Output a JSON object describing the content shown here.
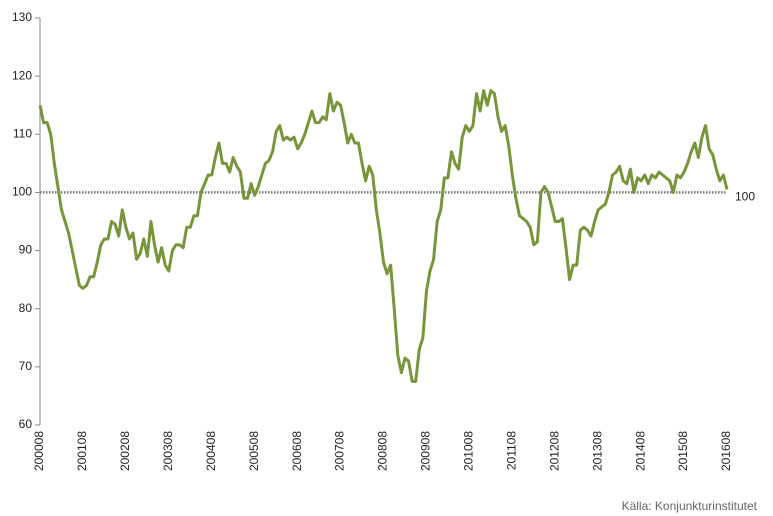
{
  "chart_data": {
    "type": "line",
    "source": "Källa: Konjunkturinstitutet",
    "categories": [
      "200008",
      null,
      null,
      null,
      null,
      null,
      null,
      null,
      null,
      null,
      null,
      null,
      "200108",
      null,
      null,
      null,
      null,
      null,
      null,
      null,
      null,
      null,
      null,
      null,
      "200208",
      null,
      null,
      null,
      null,
      null,
      null,
      null,
      null,
      null,
      null,
      null,
      "200308",
      null,
      null,
      null,
      null,
      null,
      null,
      null,
      null,
      null,
      null,
      null,
      "200408",
      null,
      null,
      null,
      null,
      null,
      null,
      null,
      null,
      null,
      null,
      null,
      "200508",
      null,
      null,
      null,
      null,
      null,
      null,
      null,
      null,
      null,
      null,
      null,
      "200608",
      null,
      null,
      null,
      null,
      null,
      null,
      null,
      null,
      null,
      null,
      null,
      "200708",
      null,
      null,
      null,
      null,
      null,
      null,
      null,
      null,
      null,
      null,
      null,
      "200808",
      null,
      null,
      null,
      null,
      null,
      null,
      null,
      null,
      null,
      null,
      null,
      "200908",
      null,
      null,
      null,
      null,
      null,
      null,
      null,
      null,
      null,
      null,
      null,
      "201008",
      null,
      null,
      null,
      null,
      null,
      null,
      null,
      null,
      null,
      null,
      null,
      "201108",
      null,
      null,
      null,
      null,
      null,
      null,
      null,
      null,
      null,
      null,
      null,
      "201208",
      null,
      null,
      null,
      null,
      null,
      null,
      null,
      null,
      null,
      null,
      null,
      "201308",
      null,
      null,
      null,
      null,
      null,
      null,
      null,
      null,
      null,
      null,
      null,
      "201408",
      null,
      null,
      null,
      null,
      null,
      null,
      null,
      null,
      null,
      null,
      null,
      "201508",
      null,
      null,
      null,
      null,
      null,
      null,
      null,
      null,
      null,
      null,
      null,
      "201608"
    ],
    "values": [
      115,
      112,
      112,
      110,
      105,
      101,
      97,
      95,
      93,
      90,
      87,
      84,
      83.5,
      84,
      85.5,
      85.5,
      88,
      91,
      92,
      92,
      95,
      94.5,
      92.5,
      97,
      94,
      92,
      93,
      88.5,
      89.5,
      92,
      89,
      95,
      91,
      88,
      90.5,
      87.5,
      86.5,
      90,
      91,
      91,
      90.5,
      94,
      94,
      96,
      96,
      100,
      101.5,
      103,
      103,
      106,
      108.5,
      105,
      105,
      103.5,
      106,
      104.5,
      103.5,
      99,
      99,
      101.5,
      99.5,
      101,
      103,
      105,
      105.5,
      107,
      110.5,
      111.5,
      109,
      109.5,
      109,
      109.5,
      107.5,
      108.5,
      110,
      112,
      114,
      112,
      112,
      113,
      112.5,
      117,
      114,
      115.5,
      115,
      112,
      108.5,
      110,
      108.5,
      108.5,
      105,
      102,
      104.5,
      103,
      97,
      93,
      88,
      86,
      87.5,
      80,
      72,
      69,
      71.5,
      71,
      67.5,
      67.5,
      73,
      75,
      83,
      86.5,
      88.5,
      95,
      97,
      102.5,
      102.5,
      107,
      105,
      104,
      109.5,
      111.5,
      110.5,
      111.5,
      117,
      114,
      117.5,
      115,
      117.5,
      117,
      113,
      110.5,
      111.5,
      108,
      103,
      99,
      96,
      95.5,
      95,
      94,
      91,
      91.5,
      100,
      101,
      100,
      97.5,
      95,
      95,
      95.5,
      90.5,
      85,
      87.5,
      87.5,
      93.5,
      94,
      93.5,
      92.5,
      95,
      97,
      97.5,
      98,
      100,
      103,
      103.5,
      104.5,
      102,
      101.5,
      104,
      100,
      102.5,
      102,
      103,
      101.5,
      103,
      102.5,
      103.5,
      103,
      102.5,
      102,
      100,
      103,
      102.5,
      103.5,
      105,
      107,
      108.5,
      106,
      109.5,
      111.5,
      107.5,
      106.5,
      104,
      102,
      103,
      100.5
    ],
    "color": "#77963a",
    "reference_line": 100,
    "ylim": [
      60,
      130
    ],
    "yticks": [
      60,
      70,
      80,
      90,
      100,
      110,
      120,
      130
    ],
    "grid": false
  }
}
